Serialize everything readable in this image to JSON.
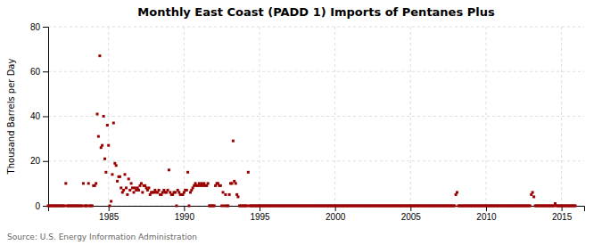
{
  "chart_data": {
    "type": "scatter",
    "title": "Monthly East Coast (PADD 1) Imports of Pentanes Plus",
    "ylabel": "Thousand Barrels per Day",
    "source": "Source: U.S. Energy Information Administration",
    "color": "#990000",
    "marker": "square",
    "grid": true,
    "xlim": [
      1981.0,
      2016.5
    ],
    "ylim": [
      0,
      80
    ],
    "xticks": [
      1985,
      1990,
      1995,
      2000,
      2005,
      2010,
      2015
    ],
    "yticks": [
      0,
      20,
      40,
      60,
      80
    ],
    "x": [
      1981.0,
      1981.08,
      1981.17,
      1981.25,
      1981.33,
      1981.42,
      1981.5,
      1981.58,
      1981.67,
      1981.75,
      1981.83,
      1981.92,
      1982.0,
      1982.08,
      1982.17,
      1982.25,
      1982.33,
      1982.42,
      1982.5,
      1982.58,
      1982.67,
      1982.75,
      1982.83,
      1982.92,
      1983.0,
      1983.08,
      1983.17,
      1983.25,
      1983.33,
      1983.42,
      1983.5,
      1983.58,
      1983.67,
      1983.75,
      1983.83,
      1983.92,
      1984.0,
      1984.08,
      1984.17,
      1984.25,
      1984.33,
      1984.42,
      1984.5,
      1984.58,
      1984.67,
      1984.75,
      1984.83,
      1984.92,
      1985.0,
      1985.08,
      1985.17,
      1985.25,
      1985.33,
      1985.42,
      1985.5,
      1985.58,
      1985.67,
      1985.75,
      1985.83,
      1985.92,
      1986.0,
      1986.08,
      1986.17,
      1986.25,
      1986.33,
      1986.42,
      1986.5,
      1986.58,
      1986.67,
      1986.75,
      1986.83,
      1986.92,
      1987.0,
      1987.08,
      1987.17,
      1987.25,
      1987.33,
      1987.42,
      1987.5,
      1987.58,
      1987.67,
      1987.75,
      1987.83,
      1987.92,
      1988.0,
      1988.08,
      1988.17,
      1988.25,
      1988.33,
      1988.42,
      1988.5,
      1988.58,
      1988.67,
      1988.75,
      1988.83,
      1988.92,
      1989.0,
      1989.08,
      1989.17,
      1989.25,
      1989.33,
      1989.42,
      1989.5,
      1989.58,
      1989.67,
      1989.75,
      1989.83,
      1989.92,
      1990.0,
      1990.08,
      1990.17,
      1990.25,
      1990.33,
      1990.42,
      1990.5,
      1990.58,
      1990.67,
      1990.75,
      1990.83,
      1990.92,
      1991.0,
      1991.08,
      1991.17,
      1991.25,
      1991.33,
      1991.42,
      1991.5,
      1991.58,
      1991.67,
      1991.75,
      1991.83,
      1991.92,
      1992.0,
      1992.08,
      1992.17,
      1992.25,
      1992.33,
      1992.42,
      1992.5,
      1992.58,
      1992.67,
      1992.75,
      1992.83,
      1992.92,
      1993.0,
      1993.08,
      1993.17,
      1993.25,
      1993.33,
      1993.42,
      1993.5,
      1993.58,
      1993.67,
      1993.75,
      1993.83,
      1993.92,
      1994.0,
      1994.08,
      1994.17,
      1994.25,
      1994.33,
      1994.42,
      1994.5,
      1994.58,
      1994.67,
      1994.75,
      1994.83,
      1994.92,
      1995.0,
      1995.08,
      1995.17,
      1995.25,
      1995.33,
      1995.42,
      1995.5,
      1995.58,
      1995.67,
      1995.75,
      1995.83,
      1995.92,
      1996.0,
      1996.08,
      1996.17,
      1996.25,
      1996.33,
      1996.42,
      1996.5,
      1996.58,
      1996.67,
      1996.75,
      1996.83,
      1996.92,
      1997.0,
      1997.08,
      1997.17,
      1997.25,
      1997.33,
      1997.42,
      1997.5,
      1997.58,
      1997.67,
      1997.75,
      1997.83,
      1997.92,
      1998.0,
      1998.08,
      1998.17,
      1998.25,
      1998.33,
      1998.42,
      1998.5,
      1998.58,
      1998.67,
      1998.75,
      1998.83,
      1998.92,
      1999.0,
      1999.08,
      1999.17,
      1999.25,
      1999.33,
      1999.42,
      1999.5,
      1999.58,
      1999.67,
      1999.75,
      1999.83,
      1999.92,
      2000.0,
      2000.08,
      2000.17,
      2000.25,
      2000.33,
      2000.42,
      2000.5,
      2000.58,
      2000.67,
      2000.75,
      2000.83,
      2000.92,
      2001.0,
      2001.08,
      2001.17,
      2001.25,
      2001.33,
      2001.42,
      2001.5,
      2001.58,
      2001.67,
      2001.75,
      2001.83,
      2001.92,
      2002.0,
      2002.08,
      2002.17,
      2002.25,
      2002.33,
      2002.42,
      2002.5,
      2002.58,
      2002.67,
      2002.75,
      2002.83,
      2002.92,
      2003.0,
      2003.08,
      2003.17,
      2003.25,
      2003.33,
      2003.42,
      2003.5,
      2003.58,
      2003.67,
      2003.75,
      2003.83,
      2003.92,
      2004.0,
      2004.08,
      2004.17,
      2004.25,
      2004.33,
      2004.42,
      2004.5,
      2004.58,
      2004.67,
      2004.75,
      2004.83,
      2004.92,
      2005.0,
      2005.08,
      2005.17,
      2005.25,
      2005.33,
      2005.42,
      2005.5,
      2005.58,
      2005.67,
      2005.75,
      2005.83,
      2005.92,
      2006.0,
      2006.08,
      2006.17,
      2006.25,
      2006.33,
      2006.42,
      2006.5,
      2006.58,
      2006.67,
      2006.75,
      2006.83,
      2006.92,
      2007.0,
      2007.08,
      2007.17,
      2007.25,
      2007.33,
      2007.42,
      2007.5,
      2007.58,
      2007.67,
      2007.75,
      2007.83,
      2007.92,
      2008.0,
      2008.08,
      2008.17,
      2008.25,
      2008.33,
      2008.42,
      2008.5,
      2008.58,
      2008.67,
      2008.75,
      2008.83,
      2008.92,
      2009.0,
      2009.08,
      2009.17,
      2009.25,
      2009.33,
      2009.42,
      2009.5,
      2009.58,
      2009.67,
      2009.75,
      2009.83,
      2009.92,
      2010.0,
      2010.08,
      2010.17,
      2010.25,
      2010.33,
      2010.42,
      2010.5,
      2010.58,
      2010.67,
      2010.75,
      2010.83,
      2010.92,
      2011.0,
      2011.08,
      2011.17,
      2011.25,
      2011.33,
      2011.42,
      2011.5,
      2011.58,
      2011.67,
      2011.75,
      2011.83,
      2011.92,
      2012.0,
      2012.08,
      2012.17,
      2012.25,
      2012.33,
      2012.42,
      2012.5,
      2012.58,
      2012.67,
      2012.75,
      2012.83,
      2012.92,
      2013.0,
      2013.08,
      2013.17,
      2013.25,
      2013.33,
      2013.42,
      2013.5,
      2013.58,
      2013.67,
      2013.75,
      2013.83,
      2013.92,
      2014.0,
      2014.08,
      2014.17,
      2014.25,
      2014.33,
      2014.42,
      2014.5,
      2014.58,
      2014.67,
      2014.75,
      2014.83,
      2014.92,
      2015.0,
      2015.08,
      2015.17,
      2015.25,
      2015.33,
      2015.42,
      2015.5,
      2015.58,
      2015.67,
      2015.75,
      2015.83,
      2015.92
    ],
    "values": [
      0,
      0,
      0,
      0,
      0,
      0,
      0,
      0,
      0,
      0,
      0,
      0,
      0,
      0,
      10,
      0,
      0,
      0,
      0,
      0,
      0,
      0,
      0,
      0,
      0,
      0,
      0,
      0,
      10,
      0,
      0,
      0,
      10,
      0,
      0,
      0,
      9,
      9,
      10,
      41,
      31,
      67,
      26,
      27,
      40,
      21,
      15,
      36,
      27,
      0,
      2,
      14,
      37,
      19,
      18,
      11,
      13,
      13,
      8,
      6,
      7,
      14,
      8,
      5,
      12,
      7,
      10,
      8,
      6,
      8,
      7,
      8,
      7,
      9,
      10,
      6,
      9,
      9,
      8,
      7,
      8,
      5,
      6,
      6,
      6,
      7,
      6,
      6,
      7,
      5,
      5,
      6,
      7,
      6,
      6,
      7,
      16,
      6,
      5,
      5,
      6,
      6,
      0,
      7,
      6,
      5,
      5,
      5,
      6,
      7,
      7,
      15,
      0,
      6,
      7,
      8,
      9,
      10,
      9,
      9,
      10,
      9,
      10,
      9,
      10,
      9,
      9,
      10,
      0,
      0,
      0,
      0,
      0,
      9,
      10,
      10,
      9,
      9,
      0,
      6,
      0,
      5,
      0,
      0,
      5,
      10,
      10,
      29,
      11,
      10,
      5,
      4,
      0,
      0,
      0,
      0,
      0,
      0,
      0,
      15,
      0,
      0,
      0,
      0,
      0,
      0,
      0,
      0,
      0,
      0,
      0,
      0,
      0,
      0,
      0,
      0,
      0,
      0,
      0,
      0,
      0,
      0,
      0,
      0,
      0,
      0,
      0,
      0,
      0,
      0,
      0,
      0,
      0,
      0,
      0,
      0,
      0,
      0,
      0,
      0,
      0,
      0,
      0,
      0,
      0,
      0,
      0,
      0,
      0,
      0,
      0,
      0,
      0,
      0,
      0,
      0,
      0,
      0,
      0,
      0,
      0,
      0,
      0,
      0,
      0,
      0,
      0,
      0,
      0,
      0,
      0,
      0,
      0,
      0,
      0,
      0,
      0,
      0,
      0,
      0,
      0,
      0,
      0,
      0,
      0,
      0,
      0,
      0,
      0,
      0,
      0,
      0,
      0,
      0,
      0,
      0,
      0,
      0,
      0,
      0,
      0,
      0,
      0,
      0,
      0,
      0,
      0,
      0,
      0,
      0,
      0,
      0,
      0,
      0,
      0,
      0,
      0,
      0,
      0,
      0,
      0,
      0,
      0,
      0,
      0,
      0,
      0,
      0,
      0,
      0,
      0,
      0,
      0,
      0,
      0,
      0,
      0,
      0,
      0,
      0,
      0,
      0,
      0,
      0,
      0,
      0,
      0,
      0,
      0,
      0,
      0,
      0,
      0,
      0,
      0,
      0,
      0,
      0,
      0,
      0,
      0,
      0,
      0,
      0,
      5,
      6,
      0,
      0,
      0,
      0,
      0,
      0,
      0,
      0,
      0,
      0,
      0,
      0,
      0,
      0,
      0,
      0,
      0,
      0,
      0,
      0,
      0,
      0,
      0,
      0,
      0,
      0,
      0,
      0,
      0,
      0,
      0,
      0,
      0,
      0,
      0,
      0,
      0,
      0,
      0,
      0,
      0,
      0,
      0,
      0,
      0,
      0,
      0,
      0,
      0,
      0,
      0,
      0,
      0,
      0,
      0,
      0,
      0,
      0,
      5,
      6,
      4,
      0,
      0,
      0,
      0,
      0,
      0,
      0,
      0,
      0,
      0,
      0,
      0,
      0,
      0,
      0,
      0,
      1,
      0,
      0,
      0,
      0,
      0,
      0,
      0,
      0,
      0,
      0,
      0,
      0,
      0,
      0,
      0,
      0
    ]
  }
}
